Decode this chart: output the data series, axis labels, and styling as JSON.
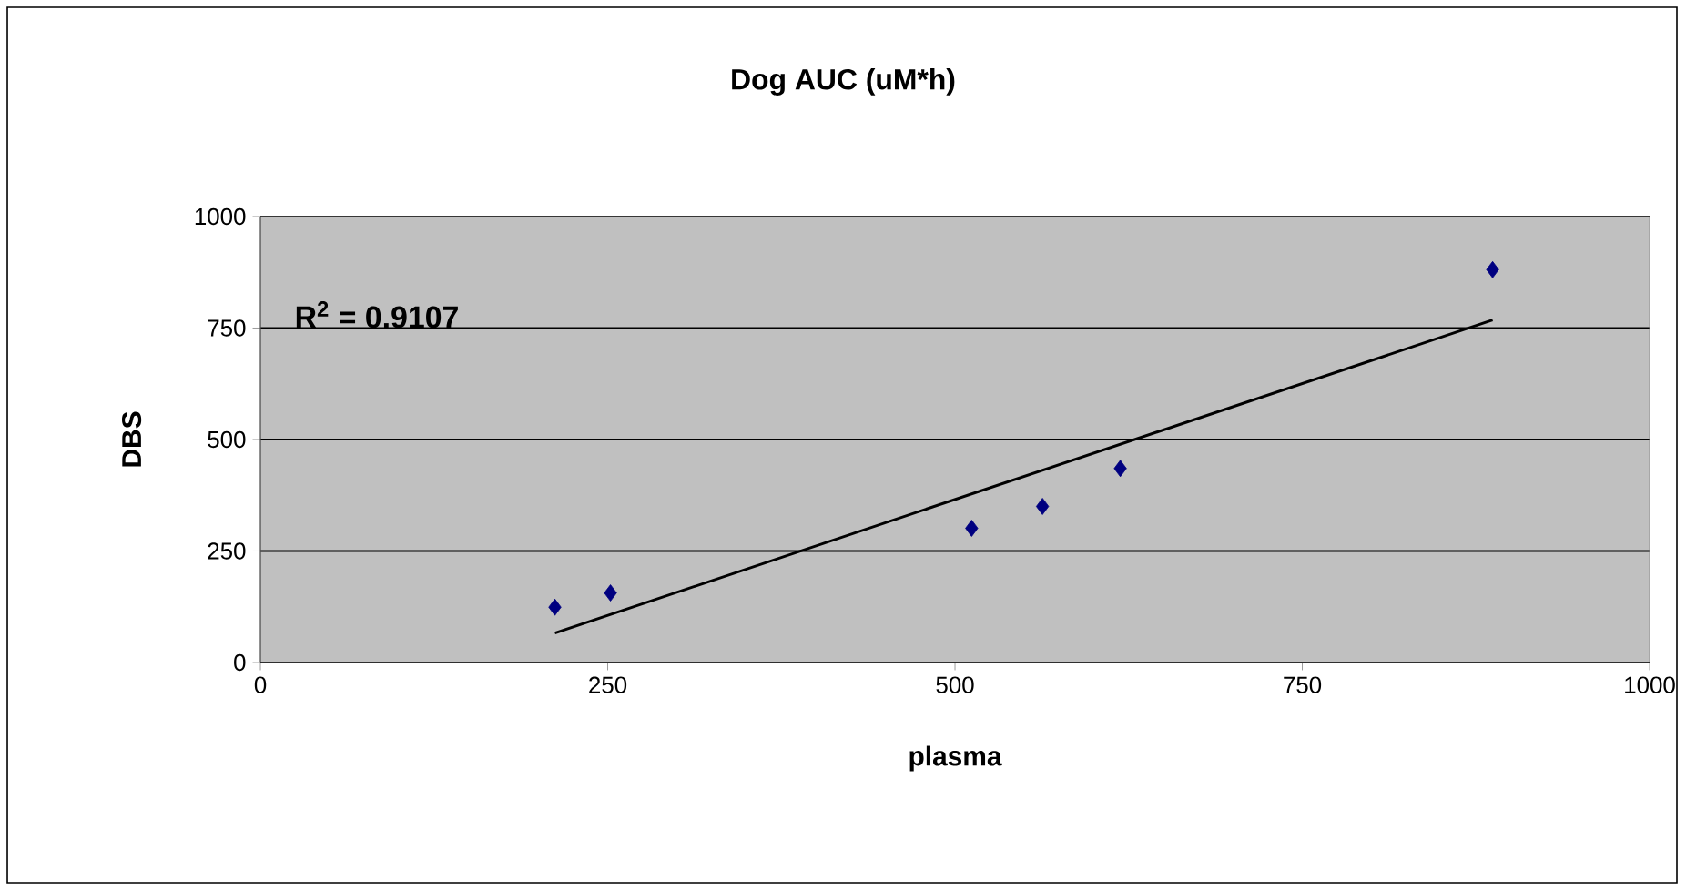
{
  "chart_data": {
    "type": "scatter",
    "title": "Dog AUC (uM*h)",
    "xlabel": "plasma",
    "ylabel": "DBS",
    "x": [
      212,
      252,
      512,
      563,
      619,
      887
    ],
    "series": [
      {
        "color": "#000080",
        "marker": "diamond",
        "values": [
          124,
          156,
          301,
          350,
          435,
          881
        ]
      },
      {
        "type": "line",
        "color": "#000000",
        "x": [
          212,
          887
        ],
        "values": [
          66,
          768
        ]
      }
    ],
    "annotations": [
      "R$^{2}$ = 0.9107"
    ],
    "xlim": [
      0,
      1000
    ],
    "ylim": [
      0,
      1000
    ],
    "xticks": [
      0,
      250,
      500,
      750,
      1000
    ],
    "yticks": [
      0,
      250,
      500,
      750,
      1000
    ],
    "grid": "y"
  }
}
